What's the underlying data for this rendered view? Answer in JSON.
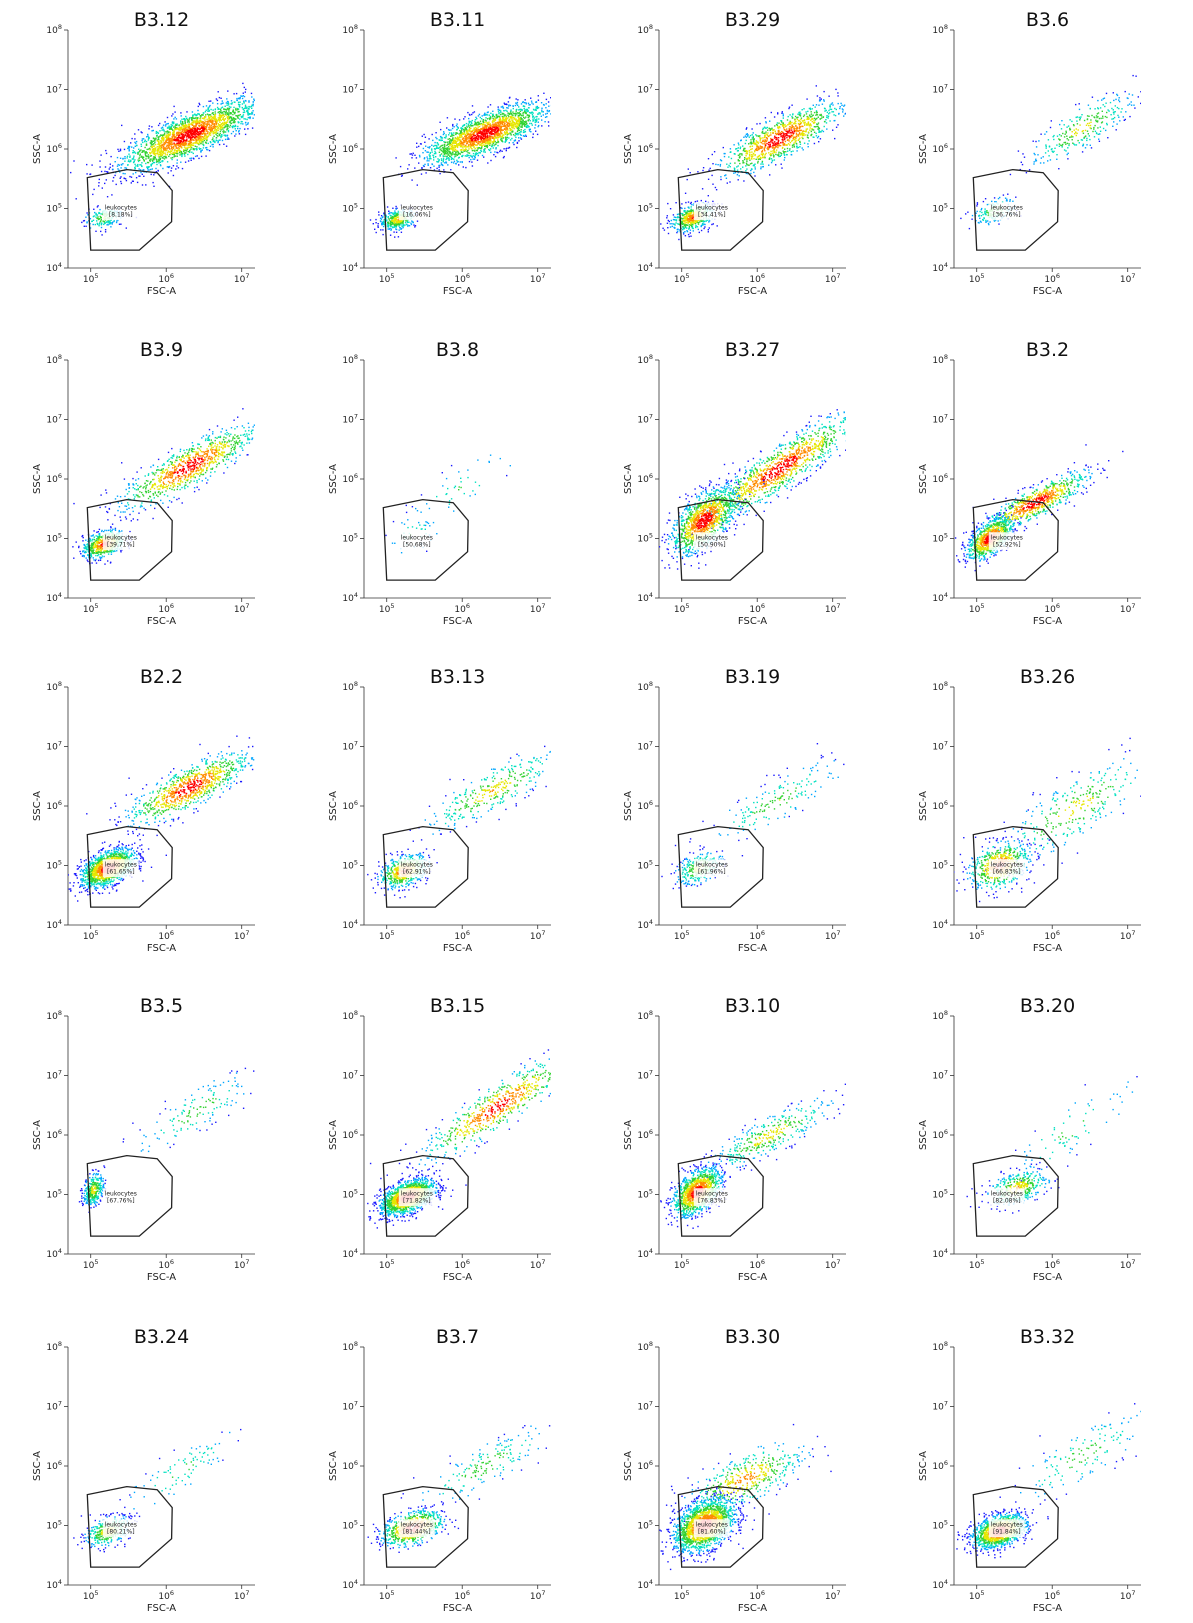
{
  "chart_data": {
    "type": "scatter",
    "layout": {
      "rows": 5,
      "cols": 4
    },
    "xlabel": "FSC-A",
    "ylabel": "SSC-A",
    "xscale": "log",
    "yscale": "log",
    "xlim": [
      50000,
      15000000
    ],
    "ylim": [
      10000,
      100000000
    ],
    "xticks": [
      100000,
      1000000,
      10000000
    ],
    "yticks": [
      10000,
      100000,
      1000000,
      10000000,
      100000000
    ],
    "gate": {
      "name": "leukocytes",
      "polygon": [
        [
          100000,
          20000
        ],
        [
          440000,
          20000
        ],
        [
          1180000,
          60000
        ],
        [
          1200000,
          200000
        ],
        [
          760000,
          400000
        ],
        [
          300000,
          450000
        ],
        [
          90000,
          330000
        ]
      ]
    },
    "colormap": [
      "#1a1aff",
      "#00a6ff",
      "#00e0c0",
      "#32d232",
      "#e6e600",
      "#ff8c00",
      "#ff0000"
    ],
    "panels": [
      {
        "title": "B3.12",
        "gate_value": "[8.18%]",
        "density": "very high",
        "populations": [
          {
            "center": [
              2000000,
              1700000
            ],
            "spread": [
              0.45,
              0.3
            ],
            "corr": 0.8,
            "weight": 0.92
          },
          {
            "center": [
              150000,
              70000
            ],
            "spread": [
              0.13,
              0.1
            ],
            "corr": 0.3,
            "weight": 0.08
          }
        ]
      },
      {
        "title": "B3.11",
        "gate_value": "[16.06%]",
        "density": "very high",
        "populations": [
          {
            "center": [
              2000000,
              1800000
            ],
            "spread": [
              0.4,
              0.25
            ],
            "corr": 0.75,
            "weight": 0.84
          },
          {
            "center": [
              140000,
              65000
            ],
            "spread": [
              0.12,
              0.09
            ],
            "corr": 0.3,
            "weight": 0.16
          }
        ]
      },
      {
        "title": "B3.29",
        "gate_value": "[34.41%]",
        "density": "high",
        "populations": [
          {
            "center": [
              2000000,
              1500000
            ],
            "spread": [
              0.4,
              0.3
            ],
            "corr": 0.8,
            "weight": 0.66
          },
          {
            "center": [
              140000,
              70000
            ],
            "spread": [
              0.14,
              0.12
            ],
            "corr": 0.4,
            "weight": 0.34
          }
        ]
      },
      {
        "title": "B3.6",
        "gate_value": "[36.76%]",
        "density": "low",
        "populations": [
          {
            "center": [
              2500000,
              2200000
            ],
            "spread": [
              0.35,
              0.3
            ],
            "corr": 0.8,
            "weight": 0.63
          },
          {
            "center": [
              170000,
              90000
            ],
            "spread": [
              0.15,
              0.12
            ],
            "corr": 0.4,
            "weight": 0.37
          }
        ]
      },
      {
        "title": "B3.9",
        "gate_value": "[39.71%]",
        "density": "high",
        "populations": [
          {
            "center": [
              2000000,
              1600000
            ],
            "spread": [
              0.45,
              0.35
            ],
            "corr": 0.85,
            "weight": 0.6
          },
          {
            "center": [
              150000,
              80000
            ],
            "spread": [
              0.14,
              0.12
            ],
            "corr": 0.4,
            "weight": 0.4
          }
        ]
      },
      {
        "title": "B3.8",
        "gate_value": "[50.68%]",
        "density": "very low",
        "populations": [
          {
            "center": [
              1000000,
              700000
            ],
            "spread": [
              0.4,
              0.35
            ],
            "corr": 0.85,
            "weight": 0.49
          },
          {
            "center": [
              220000,
              110000
            ],
            "spread": [
              0.2,
              0.18
            ],
            "corr": 0.4,
            "weight": 0.51
          }
        ]
      },
      {
        "title": "B3.27",
        "gate_value": "[50.90%]",
        "density": "very high",
        "populations": [
          {
            "center": [
              2000000,
              1500000
            ],
            "spread": [
              0.5,
              0.45
            ],
            "corr": 0.9,
            "weight": 0.49
          },
          {
            "center": [
              200000,
              200000
            ],
            "spread": [
              0.22,
              0.28
            ],
            "corr": 0.6,
            "weight": 0.51
          }
        ]
      },
      {
        "title": "B3.2",
        "gate_value": "[52.92%]",
        "density": "high",
        "populations": [
          {
            "center": [
              600000,
              400000
            ],
            "spread": [
              0.35,
              0.25
            ],
            "corr": 0.85,
            "weight": 0.47
          },
          {
            "center": [
              150000,
              100000
            ],
            "spread": [
              0.15,
              0.18
            ],
            "corr": 0.6,
            "weight": 0.53
          }
        ]
      },
      {
        "title": "B2.2",
        "gate_value": "[61.65%]",
        "density": "very high",
        "populations": [
          {
            "center": [
              2000000,
              2000000
            ],
            "spread": [
              0.4,
              0.3
            ],
            "corr": 0.8,
            "weight": 0.38
          },
          {
            "center": [
              170000,
              90000
            ],
            "spread": [
              0.18,
              0.16
            ],
            "corr": 0.5,
            "weight": 0.62
          }
        ]
      },
      {
        "title": "B3.13",
        "gate_value": "[62.91%]",
        "density": "medium",
        "populations": [
          {
            "center": [
              2500000,
              1800000
            ],
            "spread": [
              0.45,
              0.35
            ],
            "corr": 0.85,
            "weight": 0.37
          },
          {
            "center": [
              170000,
              80000
            ],
            "spread": [
              0.16,
              0.14
            ],
            "corr": 0.4,
            "weight": 0.63
          }
        ]
      },
      {
        "title": "B3.19",
        "gate_value": "[61.96%]",
        "density": "low",
        "populations": [
          {
            "center": [
              1800000,
              1200000
            ],
            "spread": [
              0.45,
              0.35
            ],
            "corr": 0.85,
            "weight": 0.38
          },
          {
            "center": [
              170000,
              90000
            ],
            "spread": [
              0.16,
              0.14
            ],
            "corr": 0.4,
            "weight": 0.62
          }
        ]
      },
      {
        "title": "B3.26",
        "gate_value": "[66.83%]",
        "density": "medium",
        "populations": [
          {
            "center": [
              2000000,
              900000
            ],
            "spread": [
              0.5,
              0.45
            ],
            "corr": 0.8,
            "weight": 0.33
          },
          {
            "center": [
              200000,
              100000
            ],
            "spread": [
              0.2,
              0.2
            ],
            "corr": 0.3,
            "weight": 0.67
          }
        ]
      },
      {
        "title": "B3.5",
        "gate_value": "[67.76%]",
        "density": "low",
        "populations": [
          {
            "center": [
              2500000,
              2500000
            ],
            "spread": [
              0.4,
              0.35
            ],
            "corr": 0.85,
            "weight": 0.32
          },
          {
            "center": [
              110000,
              120000
            ],
            "spread": [
              0.07,
              0.14
            ],
            "corr": 0.3,
            "weight": 0.68
          }
        ]
      },
      {
        "title": "B3.15",
        "gate_value": "[71.82%]",
        "density": "very high",
        "populations": [
          {
            "center": [
              3000000,
              3000000
            ],
            "spread": [
              0.5,
              0.45
            ],
            "corr": 0.9,
            "weight": 0.28
          },
          {
            "center": [
              190000,
              90000
            ],
            "spread": [
              0.18,
              0.15
            ],
            "corr": 0.5,
            "weight": 0.72
          }
        ]
      },
      {
        "title": "B3.10",
        "gate_value": "[76.83%]",
        "density": "high",
        "populations": [
          {
            "center": [
              1500000,
              1000000
            ],
            "spread": [
              0.4,
              0.3
            ],
            "corr": 0.85,
            "weight": 0.23
          },
          {
            "center": [
              160000,
              110000
            ],
            "spread": [
              0.16,
              0.2
            ],
            "corr": 0.5,
            "weight": 0.77
          }
        ]
      },
      {
        "title": "B3.20",
        "gate_value": "[82.08%]",
        "density": "low",
        "populations": [
          {
            "center": [
              1800000,
              1200000
            ],
            "spread": [
              0.45,
              0.45
            ],
            "corr": 0.85,
            "weight": 0.18
          },
          {
            "center": [
              350000,
              130000
            ],
            "spread": [
              0.2,
              0.15
            ],
            "corr": 0.4,
            "weight": 0.82
          }
        ]
      },
      {
        "title": "B3.24",
        "gate_value": "[80.21%]",
        "density": "low",
        "populations": [
          {
            "center": [
              1500000,
              800000
            ],
            "spread": [
              0.4,
              0.35
            ],
            "corr": 0.85,
            "weight": 0.2
          },
          {
            "center": [
              170000,
              80000
            ],
            "spread": [
              0.15,
              0.13
            ],
            "corr": 0.4,
            "weight": 0.8
          }
        ]
      },
      {
        "title": "B3.7",
        "gate_value": "[81.44%]",
        "density": "medium",
        "populations": [
          {
            "center": [
              2000000,
              1000000
            ],
            "spread": [
              0.45,
              0.35
            ],
            "corr": 0.85,
            "weight": 0.19
          },
          {
            "center": [
              220000,
              90000
            ],
            "spread": [
              0.2,
              0.15
            ],
            "corr": 0.4,
            "weight": 0.81
          }
        ]
      },
      {
        "title": "B3.30",
        "gate_value": "[81.60%]",
        "density": "very high",
        "populations": [
          {
            "center": [
              700000,
              600000
            ],
            "spread": [
              0.4,
              0.3
            ],
            "corr": 0.7,
            "weight": 0.2
          },
          {
            "center": [
              200000,
              100000
            ],
            "spread": [
              0.2,
              0.22
            ],
            "corr": 0.4,
            "weight": 0.8
          }
        ]
      },
      {
        "title": "B3.32",
        "gate_value": "[91.84%]",
        "density": "high",
        "populations": [
          {
            "center": [
              2500000,
              1500000
            ],
            "spread": [
              0.45,
              0.4
            ],
            "corr": 0.8,
            "weight": 0.1
          },
          {
            "center": [
              200000,
              80000
            ],
            "spread": [
              0.18,
              0.14
            ],
            "corr": 0.4,
            "weight": 0.9
          }
        ]
      }
    ]
  }
}
